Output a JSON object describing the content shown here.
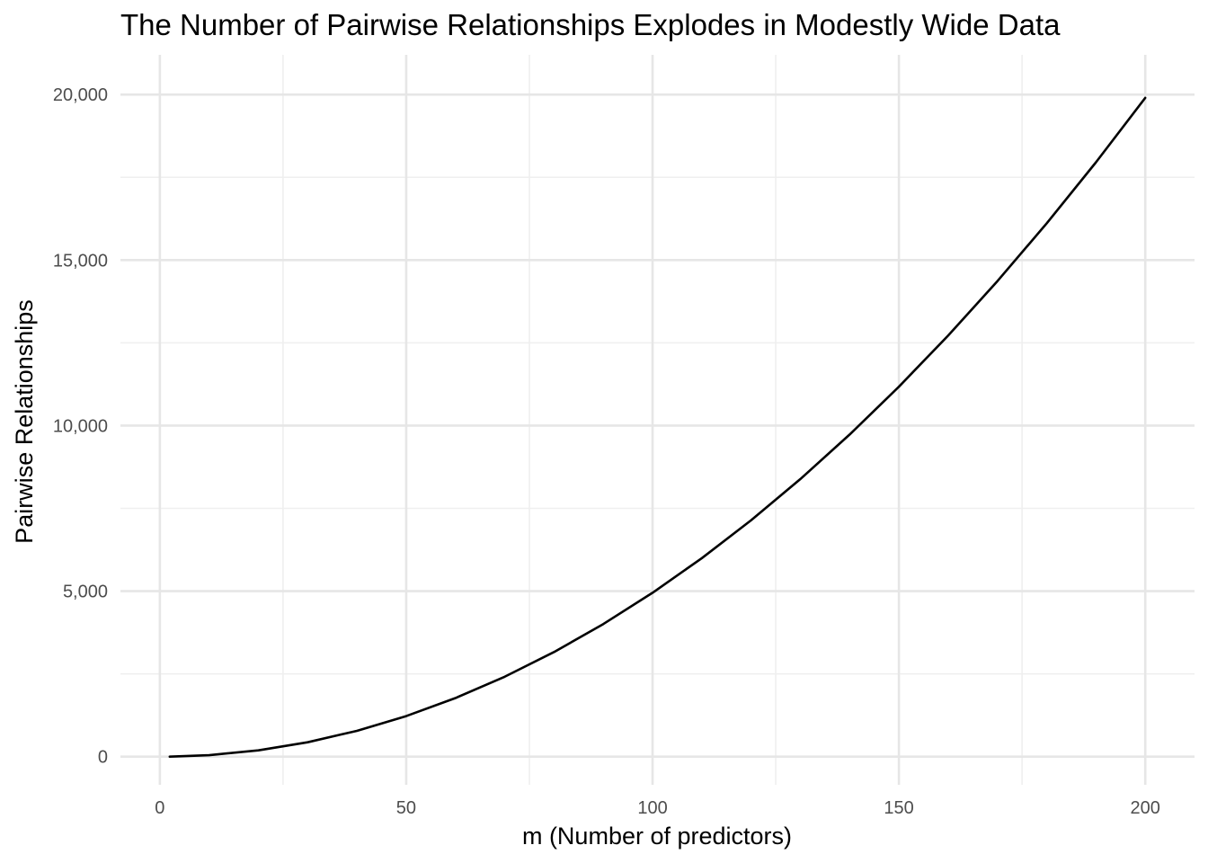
{
  "chart_data": {
    "type": "line",
    "title": "The Number of Pairwise Relationships Explodes in Modestly Wide Data",
    "xlabel": "m (Number of predictors)",
    "ylabel": "Pairwise Relationships",
    "xlim": [
      -8,
      210
    ],
    "ylim": [
      -850,
      21200
    ],
    "grid": true,
    "legend": "none",
    "x_ticks": [
      0,
      50,
      100,
      150,
      200
    ],
    "x_tick_labels": [
      "0",
      "50",
      "100",
      "150",
      "200"
    ],
    "x_minor_ticks": [
      25,
      75,
      125,
      175
    ],
    "y_ticks": [
      0,
      5000,
      10000,
      15000,
      20000
    ],
    "y_tick_labels": [
      "0",
      "5,000",
      "10,000",
      "15,000",
      "20,000"
    ],
    "y_minor_ticks": [
      2500,
      7500,
      12500,
      17500
    ],
    "series": [
      {
        "color": "#000000",
        "x": [
          2,
          10,
          20,
          30,
          40,
          50,
          60,
          70,
          80,
          90,
          100,
          110,
          120,
          130,
          140,
          150,
          160,
          170,
          180,
          190,
          200
        ],
        "y": [
          1,
          45,
          190,
          435,
          780,
          1225,
          1770,
          2415,
          3160,
          4005,
          4950,
          5995,
          7140,
          8385,
          9730,
          11175,
          12720,
          14365,
          16110,
          17955,
          19900
        ]
      }
    ]
  }
}
